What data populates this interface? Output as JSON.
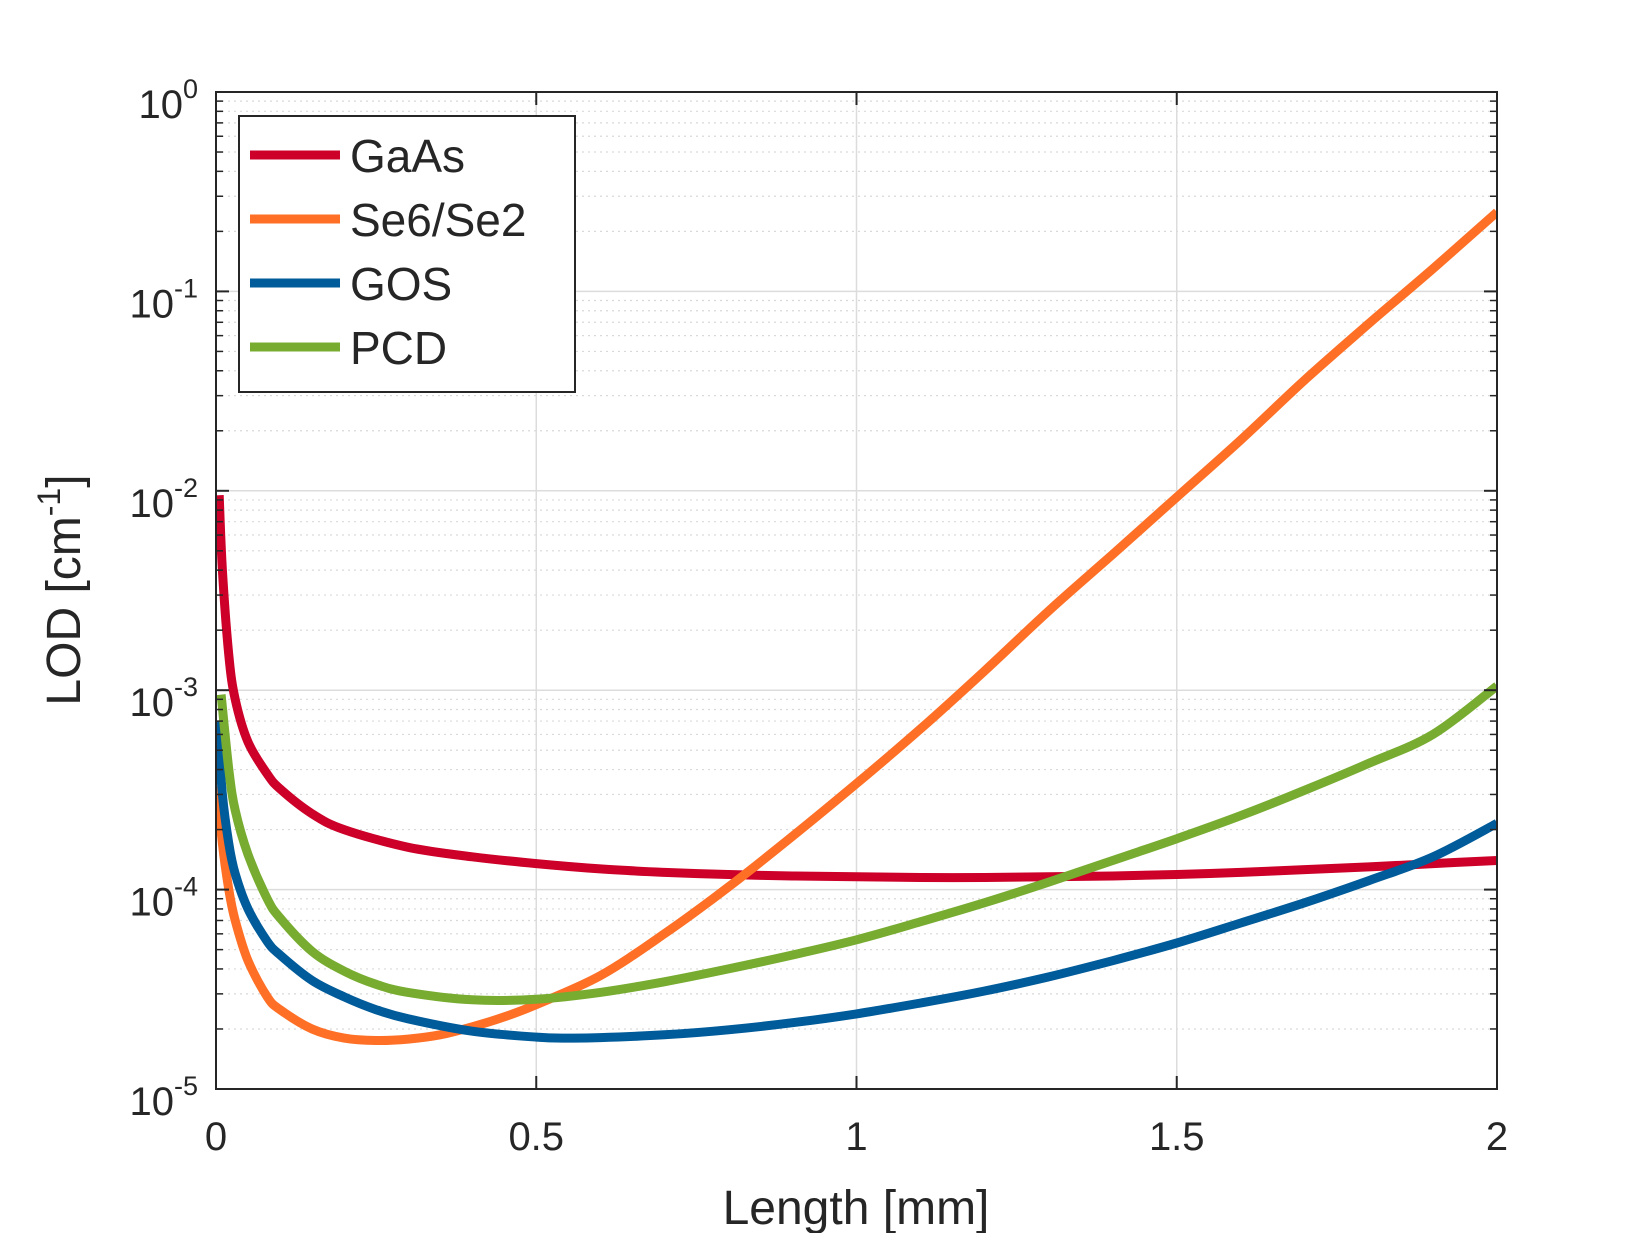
{
  "chart_data": {
    "type": "line",
    "title": "",
    "xlabel": "Length [mm]",
    "ylabel": "LOD [cm⁻¹]",
    "ylabel_parts": {
      "prefix": "LOD [cm",
      "superscript": "-1",
      "suffix": "]"
    },
    "xlim": [
      0,
      2
    ],
    "ylim": [
      1e-05,
      1
    ],
    "yscale": "log",
    "grid": true,
    "minor_grid": true,
    "legend_position": "top-left",
    "x_ticks": [
      {
        "value": 0,
        "label": "0"
      },
      {
        "value": 0.5,
        "label": "0.5"
      },
      {
        "value": 1,
        "label": "1"
      },
      {
        "value": 1.5,
        "label": "1.5"
      },
      {
        "value": 2,
        "label": "2"
      }
    ],
    "y_ticks": [
      {
        "value": 1,
        "base": "10",
        "exp": "0"
      },
      {
        "value": 0.1,
        "base": "10",
        "exp": "-1"
      },
      {
        "value": 0.01,
        "base": "10",
        "exp": "-2"
      },
      {
        "value": 0.001,
        "base": "10",
        "exp": "-3"
      },
      {
        "value": 0.0001,
        "base": "10",
        "exp": "-4"
      },
      {
        "value": 1e-05,
        "base": "10",
        "exp": "-5"
      }
    ],
    "series": [
      {
        "name": "GaAs",
        "color": "#cc0028",
        "x": [
          0.005,
          0.01,
          0.02,
          0.03,
          0.05,
          0.08,
          0.1,
          0.15,
          0.2,
          0.3,
          0.4,
          0.5,
          0.6,
          0.7,
          0.8,
          0.9,
          1.0,
          1.1,
          1.2,
          1.3,
          1.4,
          1.5,
          1.6,
          1.7,
          1.8,
          1.9,
          2.0
        ],
        "y": [
          0.0095,
          0.004,
          0.0015,
          0.0009,
          0.00055,
          0.00038,
          0.00032,
          0.00024,
          0.0002,
          0.000163,
          0.000146,
          0.000135,
          0.000127,
          0.000122,
          0.000119,
          0.000117,
          0.000116,
          0.000115,
          0.000115,
          0.000116,
          0.000117,
          0.000119,
          0.000122,
          0.000126,
          0.00013,
          0.000135,
          0.00014
        ]
      },
      {
        "name": "Se6/Se2",
        "color": "#ff6f26",
        "x": [
          0.002,
          0.01,
          0.02,
          0.03,
          0.05,
          0.08,
          0.1,
          0.15,
          0.2,
          0.25,
          0.3,
          0.35,
          0.4,
          0.45,
          0.5,
          0.6,
          0.7,
          0.8,
          0.9,
          1.0,
          1.1,
          1.2,
          1.3,
          1.4,
          1.5,
          1.6,
          1.7,
          1.8,
          1.9,
          2.0
        ],
        "y": [
          0.00033,
          0.00017,
          0.0001,
          7e-05,
          4.4e-05,
          2.9e-05,
          2.5e-05,
          2e-05,
          1.8e-05,
          1.75e-05,
          1.78e-05,
          1.87e-05,
          2.05e-05,
          2.3e-05,
          2.65e-05,
          3.7e-05,
          6e-05,
          0.000103,
          0.000185,
          0.00034,
          0.00064,
          0.00125,
          0.0025,
          0.0048,
          0.0093,
          0.018,
          0.036,
          0.069,
          0.13,
          0.25
        ]
      },
      {
        "name": "GOS",
        "color": "#005b9a",
        "x": [
          0.002,
          0.01,
          0.02,
          0.03,
          0.05,
          0.08,
          0.1,
          0.15,
          0.2,
          0.25,
          0.3,
          0.4,
          0.5,
          0.55,
          0.6,
          0.7,
          0.8,
          0.9,
          1.0,
          1.1,
          1.2,
          1.3,
          1.4,
          1.5,
          1.6,
          1.7,
          1.8,
          1.9,
          2.0
        ],
        "y": [
          0.0007,
          0.0003,
          0.00017,
          0.00012,
          8e-05,
          5.5e-05,
          4.7e-05,
          3.5e-05,
          2.9e-05,
          2.5e-05,
          2.25e-05,
          1.95e-05,
          1.82e-05,
          1.8e-05,
          1.81e-05,
          1.87e-05,
          1.98e-05,
          2.15e-05,
          2.38e-05,
          2.7e-05,
          3.1e-05,
          3.65e-05,
          4.4e-05,
          5.4e-05,
          6.8e-05,
          8.6e-05,
          0.000111,
          0.000146,
          0.000215
        ]
      },
      {
        "name": "PCD",
        "color": "#77ac30",
        "x": [
          0.008,
          0.02,
          0.03,
          0.05,
          0.08,
          0.1,
          0.15,
          0.2,
          0.25,
          0.3,
          0.4,
          0.5,
          0.6,
          0.7,
          0.8,
          0.9,
          1.0,
          1.1,
          1.2,
          1.3,
          1.4,
          1.5,
          1.6,
          1.7,
          1.8,
          1.9,
          2.0
        ],
        "y": [
          0.00095,
          0.0004,
          0.00025,
          0.00015,
          9e-05,
          7.2e-05,
          4.9e-05,
          3.9e-05,
          3.35e-05,
          3.05e-05,
          2.8e-05,
          2.82e-05,
          3.05e-05,
          3.45e-05,
          4e-05,
          4.7e-05,
          5.6e-05,
          6.9e-05,
          8.6e-05,
          0.000109,
          0.00014,
          0.00018,
          0.000235,
          0.000315,
          0.00043,
          0.0006,
          0.00105
        ]
      }
    ]
  }
}
